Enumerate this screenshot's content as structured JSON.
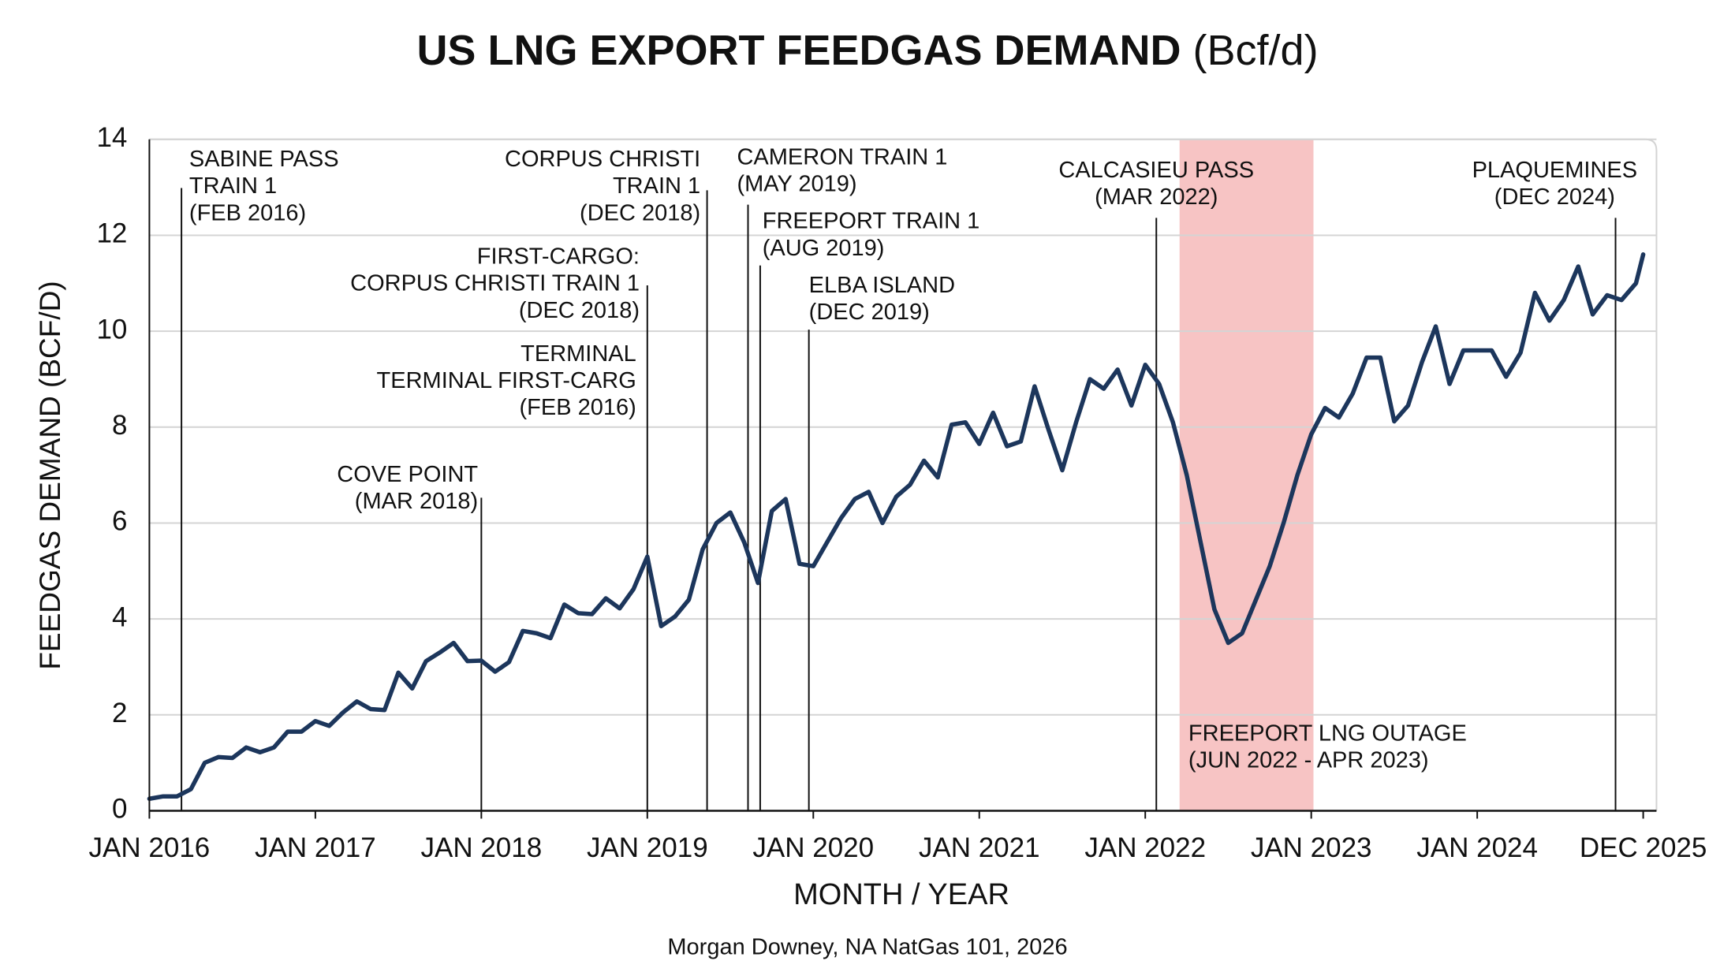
{
  "chart_data": {
    "type": "line",
    "title": "US LNG EXPORT FEEDGAS DEMAND",
    "title_unit": "(Bcf/d)",
    "x_label": "MONTH / YEAR",
    "y_label": "FEEDGAS DEMAND (BCF/D)",
    "source": "Morgan Downey, NA NatGas 101, 2026",
    "color": "#1c365c",
    "grid": true,
    "x": [
      "2016-01",
      "2016-02",
      "2016-03",
      "2016-04",
      "2016-05",
      "2016-06",
      "2016-07",
      "2016-08",
      "2016-09",
      "2016-10",
      "2016-11",
      "2016-12",
      "2017-01",
      "2017-02",
      "2017-03",
      "2017-04",
      "2017-05",
      "2017-06",
      "2017-07",
      "2017-08",
      "2017-09",
      "2017-10",
      "2017-11",
      "2017-12",
      "2018-01",
      "2018-02",
      "2018-03",
      "2018-04",
      "2018-05",
      "2018-06",
      "2018-07",
      "2018-08",
      "2018-09",
      "2018-10",
      "2018-11",
      "2018-12",
      "2019-01",
      "2019-02",
      "2019-03",
      "2019-04",
      "2019-05",
      "2019-06",
      "2019-07",
      "2019-08",
      "2019-09",
      "2019-10",
      "2019-11",
      "2019-12",
      "2020-01",
      "2020-02",
      "2020-03",
      "2020-04",
      "2020-05",
      "2020-06",
      "2020-07",
      "2020-08",
      "2020-09",
      "2020-10",
      "2020-11",
      "2020-12",
      "2021-01",
      "2021-02",
      "2021-03",
      "2021-04",
      "2021-05",
      "2021-06",
      "2021-07",
      "2021-08",
      "2021-09",
      "2021-10",
      "2021-11",
      "2021-12",
      "2022-01",
      "2022-02",
      "2022-03",
      "2022-04",
      "2022-05",
      "2022-06",
      "2022-07",
      "2022-08",
      "2022-09",
      "2022-10",
      "2022-11",
      "2022-12",
      "2023-01",
      "2023-02",
      "2023-03",
      "2023-04",
      "2023-05",
      "2023-06",
      "2023-07",
      "2023-08",
      "2023-09",
      "2023-10",
      "2023-11",
      "2023-12",
      "2024-01",
      "2024-03",
      "2024-05",
      "2024-07",
      "2024-09",
      "2024-11",
      "2025-01",
      "2025-03",
      "2025-05",
      "2025-07",
      "2025-09",
      "2025-11",
      "2025-12"
    ],
    "values": [
      0.25,
      0.3,
      0.3,
      0.45,
      1.0,
      1.12,
      1.1,
      1.32,
      1.22,
      1.32,
      1.65,
      1.65,
      1.87,
      1.77,
      2.05,
      2.28,
      2.12,
      2.1,
      2.88,
      2.55,
      3.12,
      3.3,
      3.5,
      3.12,
      3.13,
      2.9,
      3.1,
      3.75,
      3.7,
      3.6,
      4.3,
      4.12,
      4.1,
      4.43,
      4.22,
      4.62,
      5.3,
      3.85,
      4.05,
      4.4,
      5.45,
      6.0,
      6.22,
      5.6,
      4.75,
      6.25,
      6.5,
      5.15,
      5.1,
      5.6,
      6.1,
      6.5,
      6.65,
      6.0,
      6.55,
      6.8,
      7.3,
      6.95,
      8.05,
      8.1,
      7.65,
      8.3,
      7.6,
      7.7,
      8.85,
      7.95,
      7.1,
      8.1,
      9.0,
      8.8,
      9.2,
      8.45,
      9.3,
      8.9,
      8.1,
      7.0,
      5.6,
      4.2,
      3.5,
      3.7,
      4.4,
      5.1,
      6.0,
      7.0,
      7.85,
      8.4,
      8.2,
      8.7,
      9.45,
      9.45,
      8.12,
      8.45,
      9.35,
      10.1,
      8.9,
      9.6,
      9.6,
      9.6,
      9.05,
      9.55,
      10.8,
      10.22,
      10.65,
      11.35,
      10.35,
      10.75,
      10.65,
      11.0,
      11.6
    ],
    "xlim": [
      "2016-01",
      "2025-12"
    ],
    "xticks": [
      {
        "value": "2016-01",
        "label": "JAN 2016"
      },
      {
        "value": "2017-01",
        "label": "JAN 2017"
      },
      {
        "value": "2018-01",
        "label": "JAN 2018"
      },
      {
        "value": "2019-01",
        "label": "JAN 2019"
      },
      {
        "value": "2020-01",
        "label": "JAN 2020"
      },
      {
        "value": "2021-01",
        "label": "JAN 2021"
      },
      {
        "value": "2022-01",
        "label": "JAN 2022"
      },
      {
        "value": "2023-01",
        "label": "JAN 2023"
      },
      {
        "value": "2024-01",
        "label": "JAN 2024"
      },
      {
        "value": "2025-12",
        "label": "DEC 2025"
      }
    ],
    "ylim": [
      0,
      14
    ],
    "yticks": [
      0,
      2,
      4,
      6,
      8,
      10,
      12,
      14
    ],
    "annotations": [
      {
        "lines": [
          "SABINE PASS",
          "TRAIN 1",
          "(FEB 2016)"
        ]
      },
      {
        "lines": [
          "COVE POINT",
          "(MAR 2018)"
        ]
      },
      {
        "lines": [
          "TERMINAL",
          "TERMINAL FIRST-CARG",
          "(FEB 2016)"
        ]
      },
      {
        "lines": [
          "FIRST-CARGO:",
          "CORPUS CHRISTI TRAIN 1",
          "(DEC 2018)"
        ]
      },
      {
        "lines": [
          "CORPUS CHRISTI",
          "TRAIN 1",
          "(DEC 2018)"
        ]
      },
      {
        "lines": [
          "CAMERON TRAIN 1",
          "(MAY 2019)"
        ]
      },
      {
        "lines": [
          "FREEPORT TRAIN 1",
          "(AUG 2019)"
        ]
      },
      {
        "lines": [
          "ELBA ISLAND",
          "(DEC 2019)"
        ]
      },
      {
        "lines": [
          "CALCASIEU PASS",
          "(MAR 2022)"
        ]
      },
      {
        "lines": [
          "PLAQUEMINES",
          "(DEC 2024)"
        ]
      },
      {
        "lines": [
          "FREEPORT LNG OUTAGE",
          "(JUN 2022 - APR 2023)"
        ]
      }
    ]
  }
}
